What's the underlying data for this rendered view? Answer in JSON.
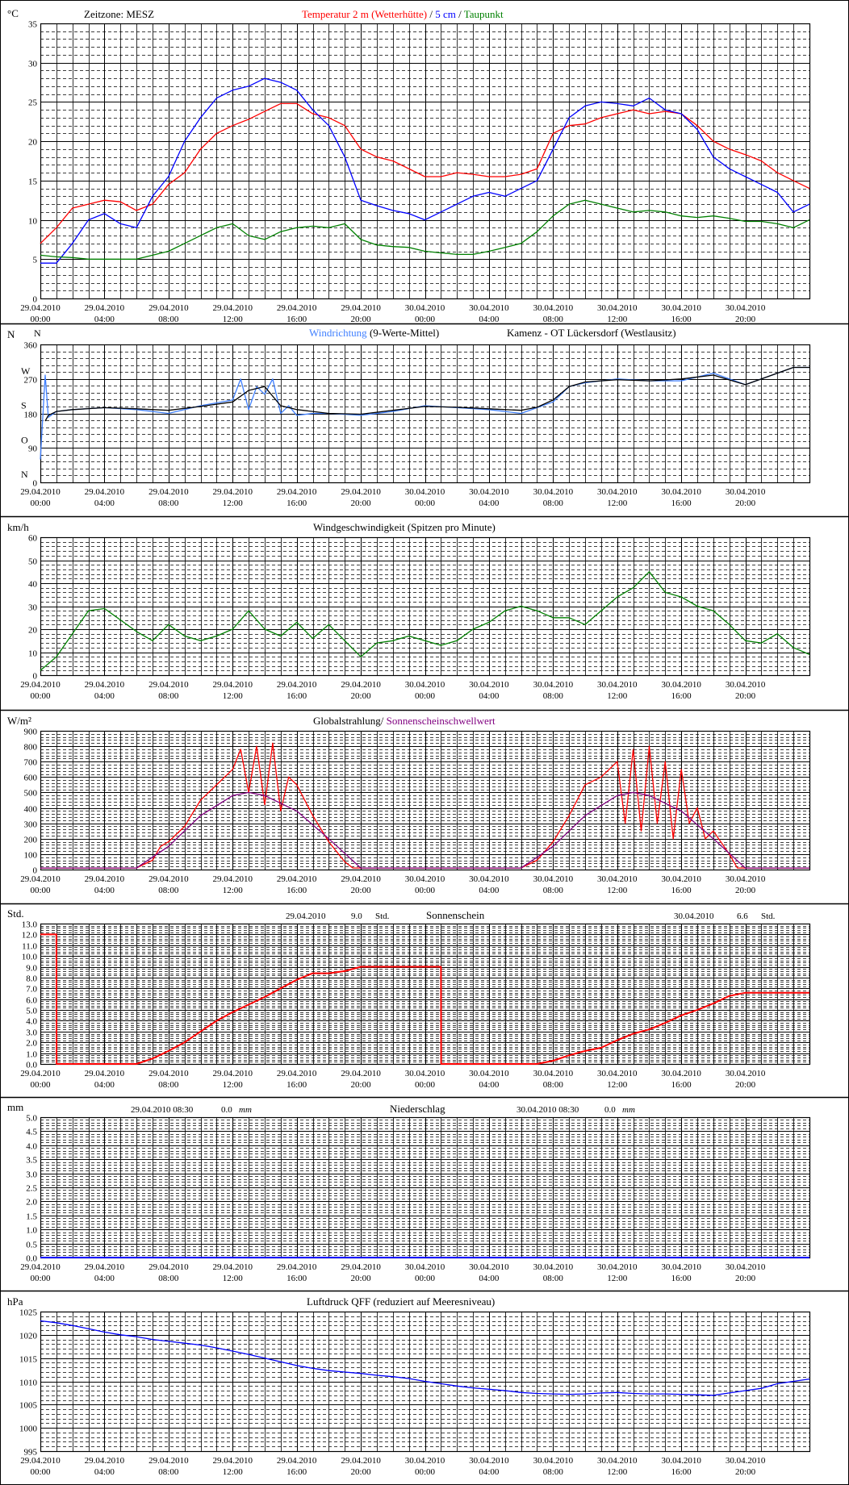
{
  "x_ticks": [
    "29.04.2010\n00:00",
    "29.04.2010\n04:00",
    "29.04.2010\n08:00",
    "29.04.2010\n12:00",
    "29.04.2010\n16:00",
    "29.04.2010\n20:00",
    "30.04.2010\n00:00",
    "30.04.2010\n04:00",
    "30.04.2010\n08:00",
    "30.04.2010\n12:00",
    "30.04.2010\n16:00",
    "30.04.2010\n20:00"
  ],
  "colors": {
    "red": "#ff0000",
    "blue": "#0000ff",
    "green": "#008000",
    "purple": "#800080",
    "lightblue": "#3f7fff",
    "black": "#000000"
  },
  "chart_data": [
    {
      "type": "line",
      "unit": "°C",
      "header": [
        "Zeitzone: MESZ",
        "Temperatur 2 m (Wetterhütte)",
        " / ",
        "5 cm",
        " / ",
        "Taupunkt"
      ],
      "ylim": [
        0,
        35
      ],
      "yticks": [
        0,
        5,
        10,
        15,
        20,
        25,
        30,
        35
      ],
      "x_hours": [
        0,
        48
      ],
      "series": [
        {
          "name": "Temperatur 2 m (Wetterhütte)",
          "color": "#ff0000",
          "x": [
            0,
            1,
            2,
            3,
            4,
            5,
            6,
            7,
            8,
            9,
            10,
            11,
            12,
            13,
            14,
            15,
            16,
            17,
            18,
            19,
            20,
            21,
            22,
            23,
            24,
            25,
            26,
            27,
            28,
            29,
            30,
            31,
            32,
            33,
            34,
            35,
            36,
            37,
            38,
            39,
            40,
            41,
            42,
            43,
            44,
            45,
            46,
            47,
            48
          ],
          "y": [
            7,
            9,
            11.5,
            12,
            12.5,
            12.3,
            11.2,
            12,
            14.5,
            16,
            19,
            21,
            22,
            22.8,
            23.8,
            24.8,
            24.8,
            23.5,
            23,
            22,
            19,
            18,
            17.5,
            16.5,
            15.5,
            15.5,
            16,
            15.8,
            15.5,
            15.5,
            15.8,
            16.5,
            21,
            22,
            22.2,
            23,
            23.5,
            24,
            23.5,
            23.8,
            23.5,
            22,
            20,
            19,
            18.3,
            17.5,
            16,
            15,
            14
          ]
        },
        {
          "name": "5 cm",
          "color": "#0000ff",
          "x": [
            0,
            1,
            2,
            3,
            4,
            5,
            6,
            7,
            8,
            9,
            10,
            11,
            12,
            13,
            14,
            15,
            16,
            17,
            18,
            19,
            20,
            21,
            22,
            23,
            24,
            25,
            26,
            27,
            28,
            29,
            30,
            31,
            32,
            33,
            34,
            35,
            36,
            37,
            38,
            39,
            40,
            41,
            42,
            43,
            44,
            45,
            46,
            47,
            48
          ],
          "y": [
            4.5,
            4.5,
            7,
            10,
            10.8,
            9.5,
            9,
            13,
            15.5,
            20,
            23,
            25.5,
            26.5,
            27,
            28,
            27.5,
            26.5,
            24,
            22,
            18,
            12.5,
            11.8,
            11.2,
            10.8,
            10,
            11,
            12,
            13,
            13.5,
            13,
            14,
            15,
            19,
            23,
            24.5,
            25,
            24.8,
            24.5,
            25.5,
            24,
            23.5,
            21.5,
            18,
            16.5,
            15.5,
            14.5,
            13.5,
            11,
            12
          ]
        },
        {
          "name": "Taupunkt",
          "color": "#008000",
          "x": [
            0,
            1,
            2,
            3,
            4,
            5,
            6,
            7,
            8,
            9,
            10,
            11,
            12,
            13,
            14,
            15,
            16,
            17,
            18,
            19,
            20,
            21,
            22,
            23,
            24,
            25,
            26,
            27,
            28,
            29,
            30,
            31,
            32,
            33,
            34,
            35,
            36,
            37,
            38,
            39,
            40,
            41,
            42,
            43,
            44,
            45,
            46,
            47,
            48
          ],
          "y": [
            5.5,
            5.3,
            5.2,
            5,
            5,
            5,
            5,
            5.5,
            6,
            7,
            8,
            9,
            9.5,
            8,
            7.5,
            8.5,
            9,
            9.2,
            9,
            9.5,
            7.5,
            6.8,
            6.6,
            6.5,
            6,
            5.8,
            5.6,
            5.6,
            6,
            6.5,
            7,
            8.5,
            10.5,
            12,
            12.5,
            12,
            11.5,
            11,
            11.2,
            11,
            10.5,
            10.3,
            10.5,
            10.2,
            9.8,
            9.8,
            9.5,
            9,
            10
          ]
        }
      ]
    },
    {
      "type": "line",
      "unit": "N",
      "header": [
        "Windrichtung",
        " (9-Werte-Mittel)",
        "Kamenz - OT Lückersdorf (Westlausitz)"
      ],
      "ylim": [
        0,
        360
      ],
      "yticks": [
        0,
        90,
        180,
        270,
        360
      ],
      "dir_labels": [
        {
          "label": "N",
          "v": 360
        },
        {
          "label": "W",
          "v": 270
        },
        {
          "label": "S",
          "v": 180
        },
        {
          "label": "O",
          "v": 90
        },
        {
          "label": "N",
          "v": 0
        }
      ],
      "series": [
        {
          "name": "Windrichtung",
          "color": "#3f7fff",
          "x": [
            0,
            0.3,
            0.5,
            1,
            2,
            4,
            6,
            8,
            10,
            12,
            12.5,
            13,
            13.5,
            14,
            14.5,
            15,
            15.5,
            16,
            17,
            18,
            20,
            22,
            24,
            26,
            28,
            30,
            31,
            32,
            33,
            34,
            36,
            38,
            40,
            42,
            44,
            46,
            47,
            48
          ],
          "y": [
            60,
            280,
            170,
            185,
            190,
            195,
            190,
            180,
            200,
            215,
            270,
            190,
            250,
            230,
            270,
            180,
            200,
            175,
            180,
            180,
            175,
            185,
            200,
            195,
            190,
            180,
            195,
            210,
            250,
            260,
            270,
            265,
            265,
            285,
            255,
            285,
            300,
            300
          ]
        },
        {
          "name": "9-Werte-Mittel",
          "color": "#000000",
          "x": [
            0.3,
            0.5,
            1,
            2,
            4,
            6,
            8,
            10,
            12,
            13,
            14,
            15,
            16,
            17,
            18,
            20,
            22,
            24,
            26,
            28,
            30,
            31,
            32,
            33,
            34,
            36,
            38,
            40,
            42,
            44,
            46,
            47,
            48
          ],
          "y": [
            160,
            175,
            185,
            190,
            195,
            192,
            188,
            198,
            210,
            240,
            250,
            200,
            190,
            185,
            180,
            178,
            188,
            198,
            196,
            192,
            188,
            196,
            215,
            250,
            262,
            268,
            265,
            270,
            280,
            255,
            285,
            300,
            300
          ]
        }
      ]
    },
    {
      "type": "line",
      "unit": "km/h",
      "header": [
        "Windgeschwindigkeit (Spitzen pro Minute)"
      ],
      "ylim": [
        0,
        60
      ],
      "yticks": [
        0,
        10,
        20,
        30,
        40,
        50,
        60
      ],
      "series": [
        {
          "name": "Windgeschwindigkeit (Spitzen pro Minute)",
          "color": "#008000",
          "x": [
            0,
            1,
            2,
            3,
            4,
            5,
            6,
            7,
            8,
            9,
            10,
            11,
            12,
            13,
            14,
            15,
            16,
            17,
            18,
            19,
            20,
            21,
            22,
            23,
            24,
            25,
            26,
            27,
            28,
            29,
            30,
            31,
            32,
            33,
            34,
            35,
            36,
            37,
            38,
            39,
            40,
            41,
            42,
            43,
            44,
            45,
            46,
            47,
            48
          ],
          "y": [
            2,
            8,
            18,
            28,
            29,
            24,
            19,
            15,
            22,
            17,
            15,
            17,
            20,
            28,
            20,
            17,
            23,
            16,
            22,
            15,
            8,
            14,
            15,
            17,
            15,
            13,
            15,
            20,
            23,
            28,
            30,
            28,
            25,
            25,
            22,
            28,
            34,
            38,
            45,
            36,
            34,
            30,
            28,
            22,
            15,
            14,
            18,
            12,
            9
          ]
        }
      ]
    },
    {
      "type": "line",
      "unit": "W/m²",
      "header": [
        "Globalstrahlung/",
        " Sonnenscheinschwellwert"
      ],
      "ylim": [
        0,
        900
      ],
      "yticks": [
        0,
        100,
        200,
        300,
        400,
        500,
        600,
        700,
        800,
        900
      ],
      "series": [
        {
          "name": "Globalstrahlung",
          "color": "#ff0000",
          "x": [
            0,
            6,
            7,
            7.5,
            8,
            9,
            10,
            11,
            12,
            12.5,
            13,
            13.5,
            14,
            14.5,
            15,
            15.5,
            16,
            17,
            18,
            19,
            19.5,
            20,
            24,
            30,
            31,
            32,
            33,
            34,
            35,
            36,
            36.5,
            37,
            37.5,
            38,
            38.5,
            39,
            39.5,
            40,
            40.5,
            41,
            41.5,
            42,
            43,
            43.5,
            48
          ],
          "y": [
            10,
            10,
            60,
            150,
            180,
            280,
            450,
            550,
            650,
            780,
            500,
            800,
            420,
            820,
            380,
            600,
            550,
            350,
            180,
            50,
            10,
            10,
            10,
            10,
            60,
            180,
            350,
            550,
            600,
            700,
            300,
            780,
            250,
            800,
            300,
            700,
            200,
            650,
            300,
            400,
            200,
            250,
            100,
            10,
            10
          ]
        },
        {
          "name": "Sonnenscheinschwellwert",
          "color": "#800080",
          "x": [
            0,
            6,
            8,
            10,
            12,
            13,
            14,
            16,
            18,
            20,
            24,
            30,
            32,
            34,
            36,
            37,
            38,
            40,
            42,
            44,
            48
          ],
          "y": [
            10,
            10,
            150,
            350,
            480,
            500,
            480,
            380,
            200,
            10,
            10,
            10,
            150,
            350,
            480,
            500,
            480,
            380,
            200,
            10,
            10
          ]
        }
      ]
    },
    {
      "type": "line",
      "unit": "Std.",
      "header": [
        "29.04.2010",
        "9.0",
        "Std.",
        "Sonnenschein",
        "30.04.2010",
        "6.6",
        "Std."
      ],
      "ylim": [
        0,
        13
      ],
      "yticks": [
        0,
        1,
        2,
        3,
        4,
        5,
        6,
        7,
        8,
        9,
        10,
        11,
        12,
        13
      ],
      "ytick_labels": [
        "0.0",
        "1.0",
        "2.0",
        "3.0",
        "4.0",
        "5.0",
        "6.0",
        "7.0",
        "8.0",
        "9.0",
        "10.0",
        "11.0",
        "12.0",
        "13.0"
      ],
      "series": [
        {
          "name": "Sonnenschein",
          "color": "#ff0000",
          "x": [
            0,
            1,
            1.01,
            6,
            7,
            8,
            9,
            10,
            11,
            12,
            13,
            14,
            15,
            16,
            17,
            18,
            19,
            20,
            21,
            22,
            25,
            25.01,
            31,
            32,
            33,
            34,
            35,
            36,
            37,
            38,
            39,
            40,
            41,
            42,
            43,
            44,
            48
          ],
          "y": [
            12,
            12,
            0,
            0,
            0.5,
            1.2,
            2,
            3,
            4,
            4.8,
            5.5,
            6.2,
            7,
            7.8,
            8.4,
            8.4,
            8.6,
            9,
            9,
            9,
            9,
            0,
            0,
            0.3,
            0.8,
            1.2,
            1.5,
            2.2,
            2.8,
            3.2,
            3.8,
            4.5,
            5,
            5.6,
            6.3,
            6.6,
            6.6
          ]
        }
      ]
    },
    {
      "type": "line",
      "unit": "mm",
      "header": [
        "29.04.2010 08:30",
        "0.0",
        "mm",
        "Niederschlag",
        "30.04.2010 08:30",
        "0.0",
        "mm"
      ],
      "ylim": [
        0,
        5
      ],
      "yticks": [
        0,
        0.5,
        1,
        1.5,
        2,
        2.5,
        3,
        3.5,
        4,
        4.5,
        5
      ],
      "ytick_labels": [
        "0.0",
        "0.5",
        "1.0",
        "1.5",
        "2.0",
        "2.5",
        "3.0",
        "3.5",
        "4.0",
        "4.5",
        "5.0"
      ],
      "series": [
        {
          "name": "Niederschlag",
          "color": "#0000ff",
          "x": [
            0,
            48
          ],
          "y": [
            0,
            0
          ]
        }
      ]
    },
    {
      "type": "line",
      "unit": "hPa",
      "header": [
        "Luftdruck QFF (reduziert auf Meeresniveau)"
      ],
      "ylim": [
        995,
        1025
      ],
      "yticks": [
        995,
        1000,
        1005,
        1010,
        1015,
        1020,
        1025
      ],
      "series": [
        {
          "name": "Luftdruck QFF (reduziert auf Meeresniveau)",
          "color": "#0000ff",
          "x": [
            0,
            1,
            2,
            3,
            4,
            5,
            6,
            7,
            8,
            9,
            10,
            11,
            12,
            13,
            14,
            15,
            16,
            17,
            18,
            19,
            20,
            21,
            22,
            23,
            24,
            25,
            26,
            27,
            28,
            29,
            30,
            31,
            32,
            33,
            34,
            35,
            36,
            37,
            38,
            39,
            40,
            41,
            42,
            43,
            44,
            45,
            46,
            47,
            48
          ],
          "y": [
            1023,
            1022.6,
            1022,
            1021.3,
            1020.6,
            1020,
            1019.6,
            1019,
            1018.6,
            1018.2,
            1017.8,
            1017.2,
            1016.5,
            1015.8,
            1015,
            1014.2,
            1013.4,
            1012.8,
            1012.3,
            1012,
            1011.7,
            1011.3,
            1011,
            1010.6,
            1010,
            1009.5,
            1009,
            1008.6,
            1008.3,
            1008,
            1007.6,
            1007.4,
            1007.3,
            1007.2,
            1007.3,
            1007.5,
            1007.6,
            1007.4,
            1007.3,
            1007.3,
            1007.2,
            1007.1,
            1007,
            1007.5,
            1008,
            1008.5,
            1009.5,
            1010,
            1010.5
          ]
        }
      ]
    }
  ]
}
